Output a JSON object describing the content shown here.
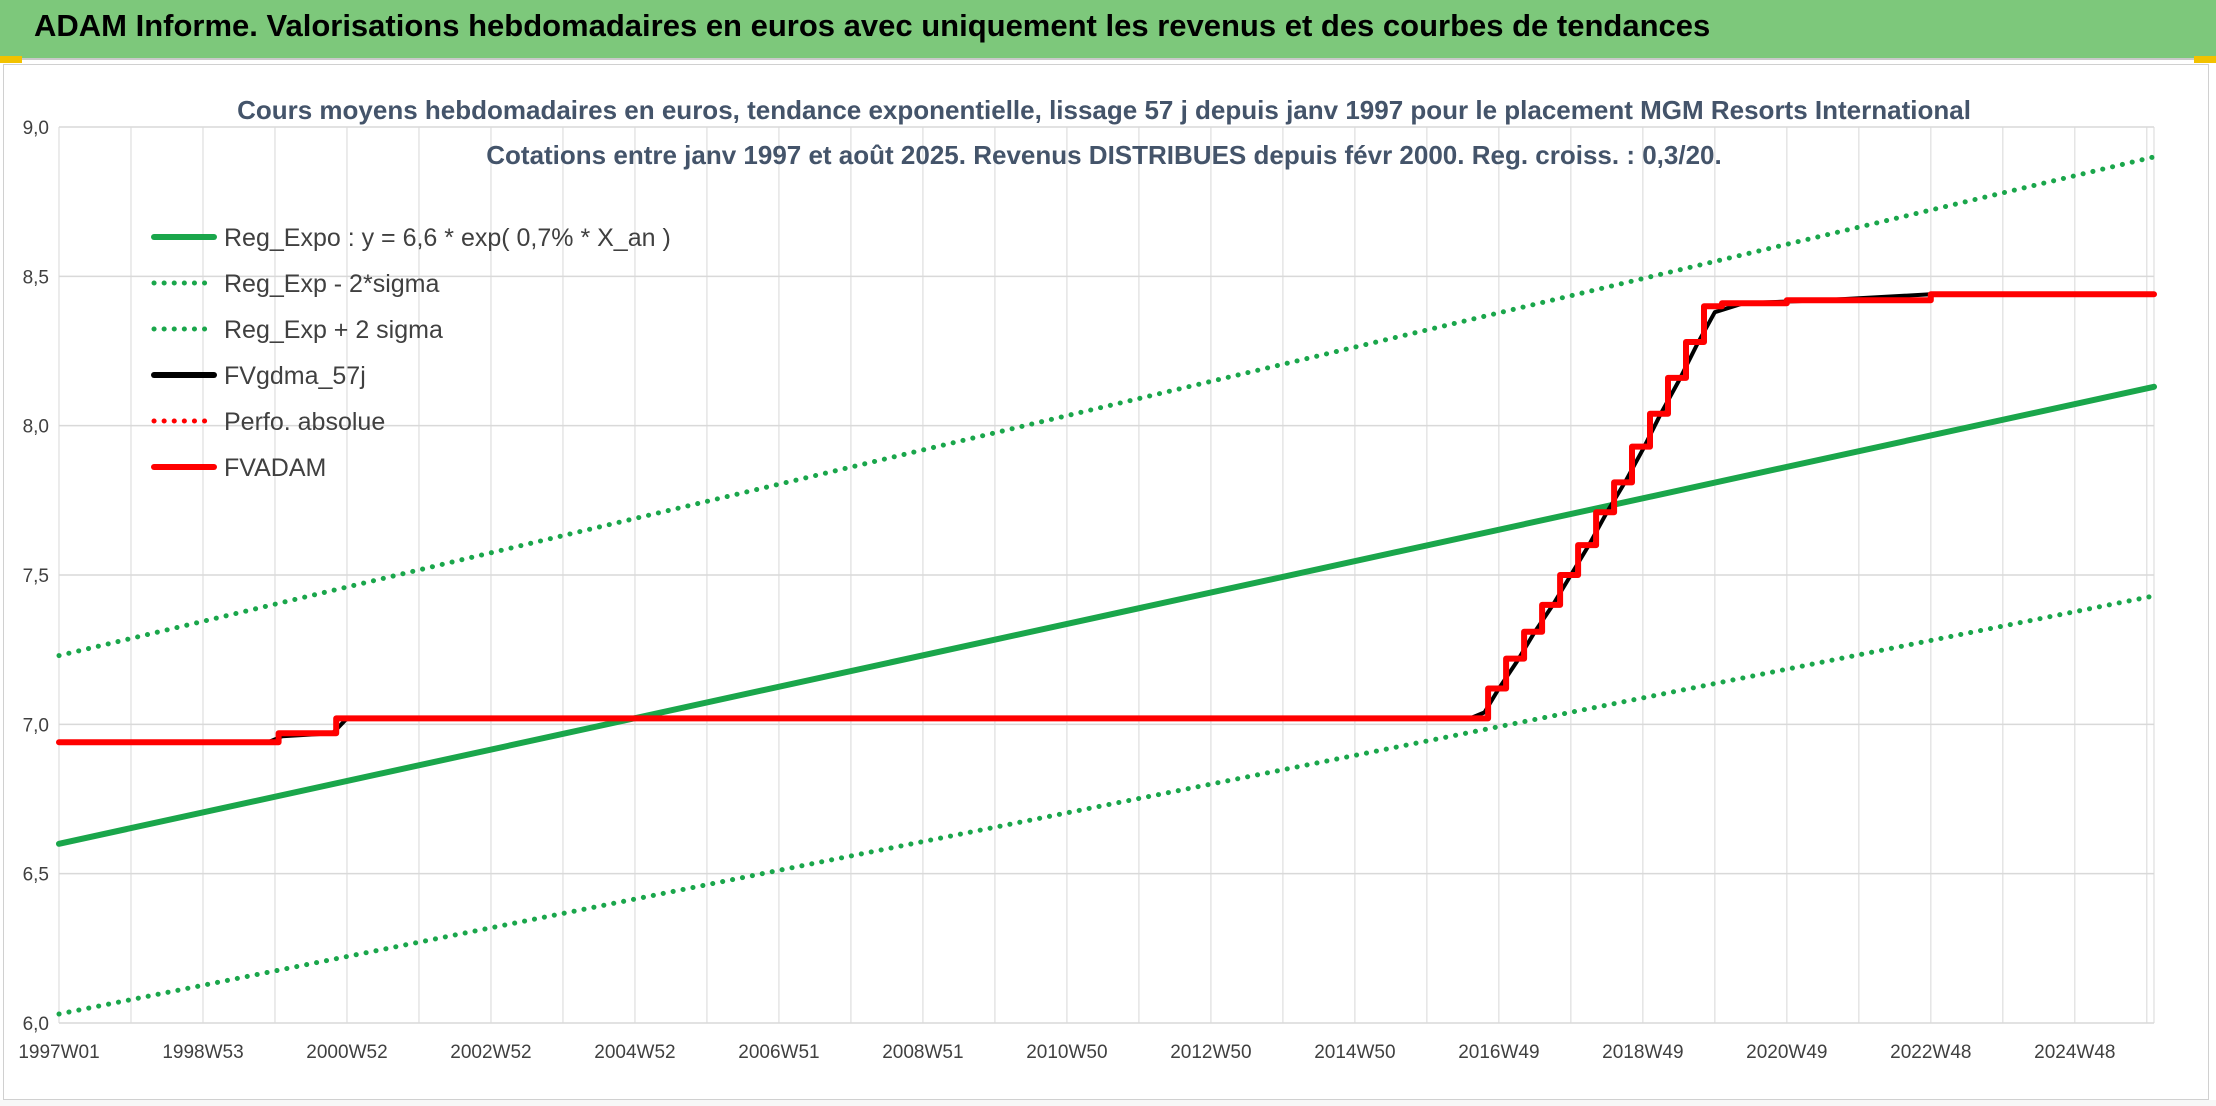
{
  "banner": {
    "title": "ADAM Informe. Valorisations hebdomadaires en euros avec uniquement les revenus et des courbes de tendances"
  },
  "colors": {
    "banner_bg": "#7dc87b",
    "green": "#1aa64b",
    "red": "#ff0000",
    "black": "#000000",
    "grid": "#d9d9d9"
  },
  "chart_data": {
    "type": "line",
    "title": "Cours moyens hebdomadaires en euros, tendance exponentielle, lissage 57 j depuis janv 1997 pour le placement MGM Resorts International",
    "subtitle": "Cotations entre janv 1997 et août 2025. Revenus DISTRIBUES depuis févr 2000. Reg. croiss. : 0,3/20.",
    "xlabel": "",
    "ylabel": "",
    "xlim": [
      1997.0,
      2026.1
    ],
    "ylim": [
      6.0,
      9.0
    ],
    "y_ticks": [
      "6,0",
      "6,5",
      "7,0",
      "7,5",
      "8,0",
      "8,5",
      "9,0"
    ],
    "y_tick_values": [
      6.0,
      6.5,
      7.0,
      7.5,
      8.0,
      8.5,
      9.0
    ],
    "x_ticks": [
      "1997W01",
      "1998W53",
      "2000W52",
      "2002W52",
      "2004W52",
      "2006W51",
      "2008W51",
      "2010W50",
      "2012W50",
      "2014W50",
      "2016W49",
      "2018W49",
      "2020W49",
      "2022W48",
      "2024W48"
    ],
    "x_tick_values": [
      1997.0,
      1999.0,
      2001.0,
      2003.0,
      2005.0,
      2007.0,
      2009.0,
      2011.0,
      2013.0,
      2015.0,
      2017.0,
      2019.0,
      2021.0,
      2023.0,
      2025.0
    ],
    "grid": true,
    "legend_position": "top-left",
    "series": [
      {
        "name": "Reg_Expo : y = 6,6 * exp( 0,7% *  X_an )",
        "color": "#1aa64b",
        "style": "solid",
        "x": [
          1997.0,
          2026.1
        ],
        "y": [
          6.6,
          8.13
        ]
      },
      {
        "name": "Reg_Exp - 2*sigma",
        "color": "#1aa64b",
        "style": "dotted",
        "x": [
          1997.0,
          2026.1
        ],
        "y": [
          6.03,
          7.43
        ]
      },
      {
        "name": "Reg_Exp + 2 sigma",
        "color": "#1aa64b",
        "style": "dotted",
        "x": [
          1997.0,
          2026.1
        ],
        "y": [
          7.23,
          8.9
        ]
      },
      {
        "name": "FVgdma_57j",
        "color": "#000000",
        "style": "solid",
        "x": [
          1997.0,
          1999.9,
          2000.1,
          2000.8,
          2001.0,
          2016.6,
          2016.8,
          2017.0,
          2017.25,
          2017.5,
          2017.75,
          2018.0,
          2018.25,
          2018.5,
          2018.75,
          2019.0,
          2019.25,
          2019.5,
          2019.75,
          2020.0,
          2020.4,
          2021.5,
          2023.0,
          2026.1
        ],
        "y": [
          6.94,
          6.94,
          6.96,
          6.97,
          7.02,
          7.02,
          7.04,
          7.12,
          7.21,
          7.31,
          7.4,
          7.5,
          7.6,
          7.71,
          7.81,
          7.92,
          8.04,
          8.15,
          8.27,
          8.38,
          8.41,
          8.42,
          8.44,
          8.44
        ]
      },
      {
        "name": "Perfo. absolue",
        "color": "#ff0000",
        "style": "dotted",
        "x": [],
        "y": []
      },
      {
        "name": "FVADAM",
        "color": "#ff0000",
        "style": "solid",
        "steps": true,
        "x": [
          1997.0,
          2000.05,
          2000.85,
          2016.65,
          2016.85,
          2017.1,
          2017.35,
          2017.6,
          2017.85,
          2018.1,
          2018.35,
          2018.6,
          2018.85,
          2019.1,
          2019.35,
          2019.6,
          2019.85,
          2020.1,
          2021.0,
          2023.0,
          2026.1
        ],
        "y": [
          6.94,
          6.97,
          7.02,
          7.02,
          7.12,
          7.22,
          7.31,
          7.4,
          7.5,
          7.6,
          7.71,
          7.81,
          7.93,
          8.04,
          8.16,
          8.28,
          8.4,
          8.41,
          8.42,
          8.44,
          8.44
        ]
      }
    ]
  }
}
